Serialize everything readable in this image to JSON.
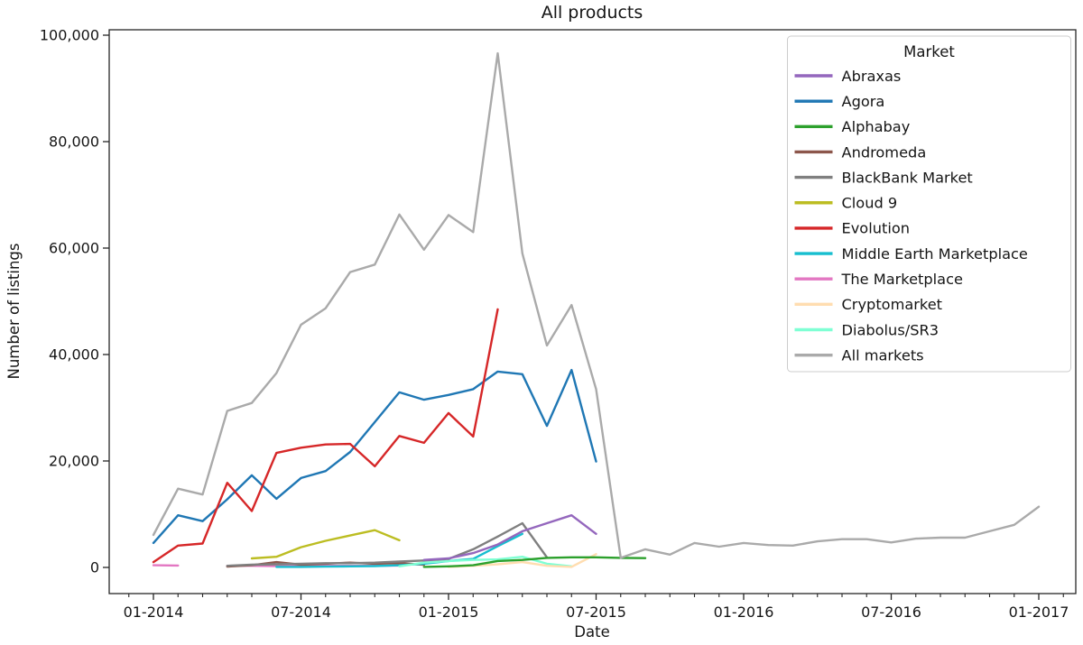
{
  "chart_data": {
    "type": "line",
    "title": "All products",
    "xlabel": "Date",
    "ylabel": "Number of listings",
    "x_unit": "month index from 2014-01 (monthly sampling)",
    "xlim_months": [
      -1.8,
      37.5
    ],
    "ylim": [
      -4900,
      101000
    ],
    "grid": false,
    "x_ticks": [
      {
        "month": 0,
        "label": "01-2014"
      },
      {
        "month": 6,
        "label": "07-2014"
      },
      {
        "month": 12,
        "label": "01-2015"
      },
      {
        "month": 18,
        "label": "07-2015"
      },
      {
        "month": 24,
        "label": "01-2016"
      },
      {
        "month": 30,
        "label": "07-2016"
      },
      {
        "month": 36,
        "label": "01-2017"
      }
    ],
    "minor_x_ticks_every_month": true,
    "y_ticks": [
      {
        "value": 0,
        "label": "0"
      },
      {
        "value": 20000,
        "label": "20,000"
      },
      {
        "value": 40000,
        "label": "40,000"
      },
      {
        "value": 60000,
        "label": "60,000"
      },
      {
        "value": 80000,
        "label": "80,000"
      },
      {
        "value": 100000,
        "label": "100,000"
      }
    ],
    "legend": {
      "title": "Market",
      "position": "upper right"
    },
    "series": [
      {
        "name": "Abraxas",
        "color": "#9467bd",
        "start_month": 11,
        "first_month": "12-2014",
        "values": [
          1400,
          1700,
          2700,
          4300,
          6800,
          8300,
          9800,
          6300
        ]
      },
      {
        "name": "Agora",
        "color": "#1f77b4",
        "start_month": 0,
        "first_month": "01-2014",
        "values": [
          4600,
          9800,
          8700,
          12800,
          17300,
          12900,
          16800,
          18100,
          21700,
          27300,
          32900,
          31500,
          32400,
          33500,
          36800,
          36300,
          26600,
          37100,
          19900
        ]
      },
      {
        "name": "Alphabay",
        "color": "#2ca02c",
        "start_month": 11,
        "first_month": "12-2014",
        "values": [
          100,
          200,
          400,
          1200,
          1400,
          1800,
          1900,
          1900,
          1800,
          1750
        ]
      },
      {
        "name": "Andromeda",
        "color": "#8c564b",
        "start_month": 3,
        "first_month": "04-2014",
        "values": [
          150,
          400,
          1000,
          500,
          700,
          900,
          700,
          800,
          500
        ]
      },
      {
        "name": "BlackBank Market",
        "color": "#7f7f7f",
        "start_month": 3,
        "first_month": "04-2014",
        "values": [
          300,
          500,
          600,
          700,
          800,
          800,
          900,
          1100,
          1300,
          1600,
          3400,
          5800,
          8300,
          1900
        ]
      },
      {
        "name": "Cloud 9",
        "color": "#bcbd22",
        "start_month": 4,
        "first_month": "05-2014",
        "values": [
          1700,
          2000,
          3800,
          5000,
          6000,
          7000,
          5100
        ]
      },
      {
        "name": "Evolution",
        "color": "#d62728",
        "start_month": 0,
        "first_month": "01-2014",
        "values": [
          1000,
          4100,
          4500,
          15900,
          10600,
          21500,
          22500,
          23100,
          23200,
          19000,
          24700,
          23400,
          29000,
          24600,
          48500
        ]
      },
      {
        "name": "Middle Earth Marketplace",
        "color": "#17becf",
        "start_month": 5,
        "first_month": "06-2014",
        "values": [
          100,
          100,
          150,
          200,
          250,
          400,
          700,
          1200,
          1600,
          4000,
          6300
        ]
      },
      {
        "name": "The Marketplace",
        "color": "#e377c2",
        "start_month": 0,
        "first_month": "01-2014",
        "values": [
          400,
          350,
          null,
          300,
          300,
          250,
          300,
          300,
          300,
          300,
          350
        ]
      },
      {
        "name": "Cryptomarket",
        "color": "#ffddb0",
        "start_month": 12,
        "first_month": "01-2015",
        "values": [
          100,
          300,
          600,
          1000,
          300,
          100,
          2500
        ]
      },
      {
        "name": "Diabolus/SR3",
        "color": "#7fffd4",
        "start_month": 10,
        "first_month": "11-2014",
        "values": [
          200,
          900,
          1200,
          1400,
          1500,
          2000,
          700,
          200
        ]
      },
      {
        "name": "All markets",
        "color": "#aaaaaa",
        "start_month": 0,
        "first_month": "01-2014",
        "values": [
          6100,
          14800,
          13700,
          29400,
          30900,
          36500,
          45600,
          48700,
          55500,
          56900,
          66300,
          59700,
          66200,
          63000,
          96600,
          59000,
          41700,
          49300,
          33500,
          1800,
          3400,
          2400,
          4600,
          3900,
          4600,
          4200,
          4100,
          4900,
          5300,
          5300,
          4700,
          5400,
          5600,
          5600,
          6800,
          8000,
          11400
        ]
      }
    ],
    "draw_order": [
      "The Marketplace",
      "Andromeda",
      "Middle Earth Marketplace",
      "Diabolus/SR3",
      "Cryptomarket",
      "BlackBank Market",
      "Cloud 9",
      "Alphabay",
      "Abraxas",
      "Agora",
      "Evolution",
      "All markets"
    ]
  }
}
